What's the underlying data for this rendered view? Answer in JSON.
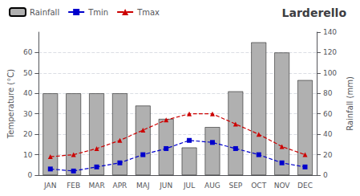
{
  "chart_data": {
    "type": "bar",
    "title": "Larderello",
    "categories": [
      "JAN",
      "FEB",
      "MAR",
      "APR",
      "MAJ",
      "JUN",
      "JUL",
      "AUG",
      "SEP",
      "OCT",
      "NOV",
      "DEC"
    ],
    "series": [
      {
        "name": "Rainfall",
        "type": "bar",
        "axis": "y2",
        "color": "#b0b0b0",
        "values": [
          80,
          80,
          80,
          80,
          68,
          55,
          27,
          47,
          82,
          130,
          120,
          93
        ]
      },
      {
        "name": "Tmin",
        "type": "line",
        "color": "#0000cc",
        "marker": "square",
        "line_style": "dashed",
        "values": [
          3,
          2,
          4,
          6,
          10,
          13,
          17,
          16,
          13,
          10,
          6,
          4
        ]
      },
      {
        "name": "Tmax",
        "type": "line",
        "color": "#cc0000",
        "marker": "triangle",
        "line_style": "dashed",
        "values": [
          9,
          10,
          13,
          17,
          22,
          27,
          30,
          30,
          25,
          20,
          14,
          10
        ]
      }
    ],
    "ylabel": "Temperature (°C)",
    "y2label": "Rainfall (mm)",
    "ylim": [
      0,
      70
    ],
    "yticks": [
      0,
      10,
      20,
      30,
      40,
      50,
      60
    ],
    "y2lim": [
      0,
      140
    ],
    "y2ticks": [
      0,
      20,
      40,
      60,
      80,
      100,
      120,
      140
    ],
    "grid": true,
    "legend": "upper left"
  }
}
